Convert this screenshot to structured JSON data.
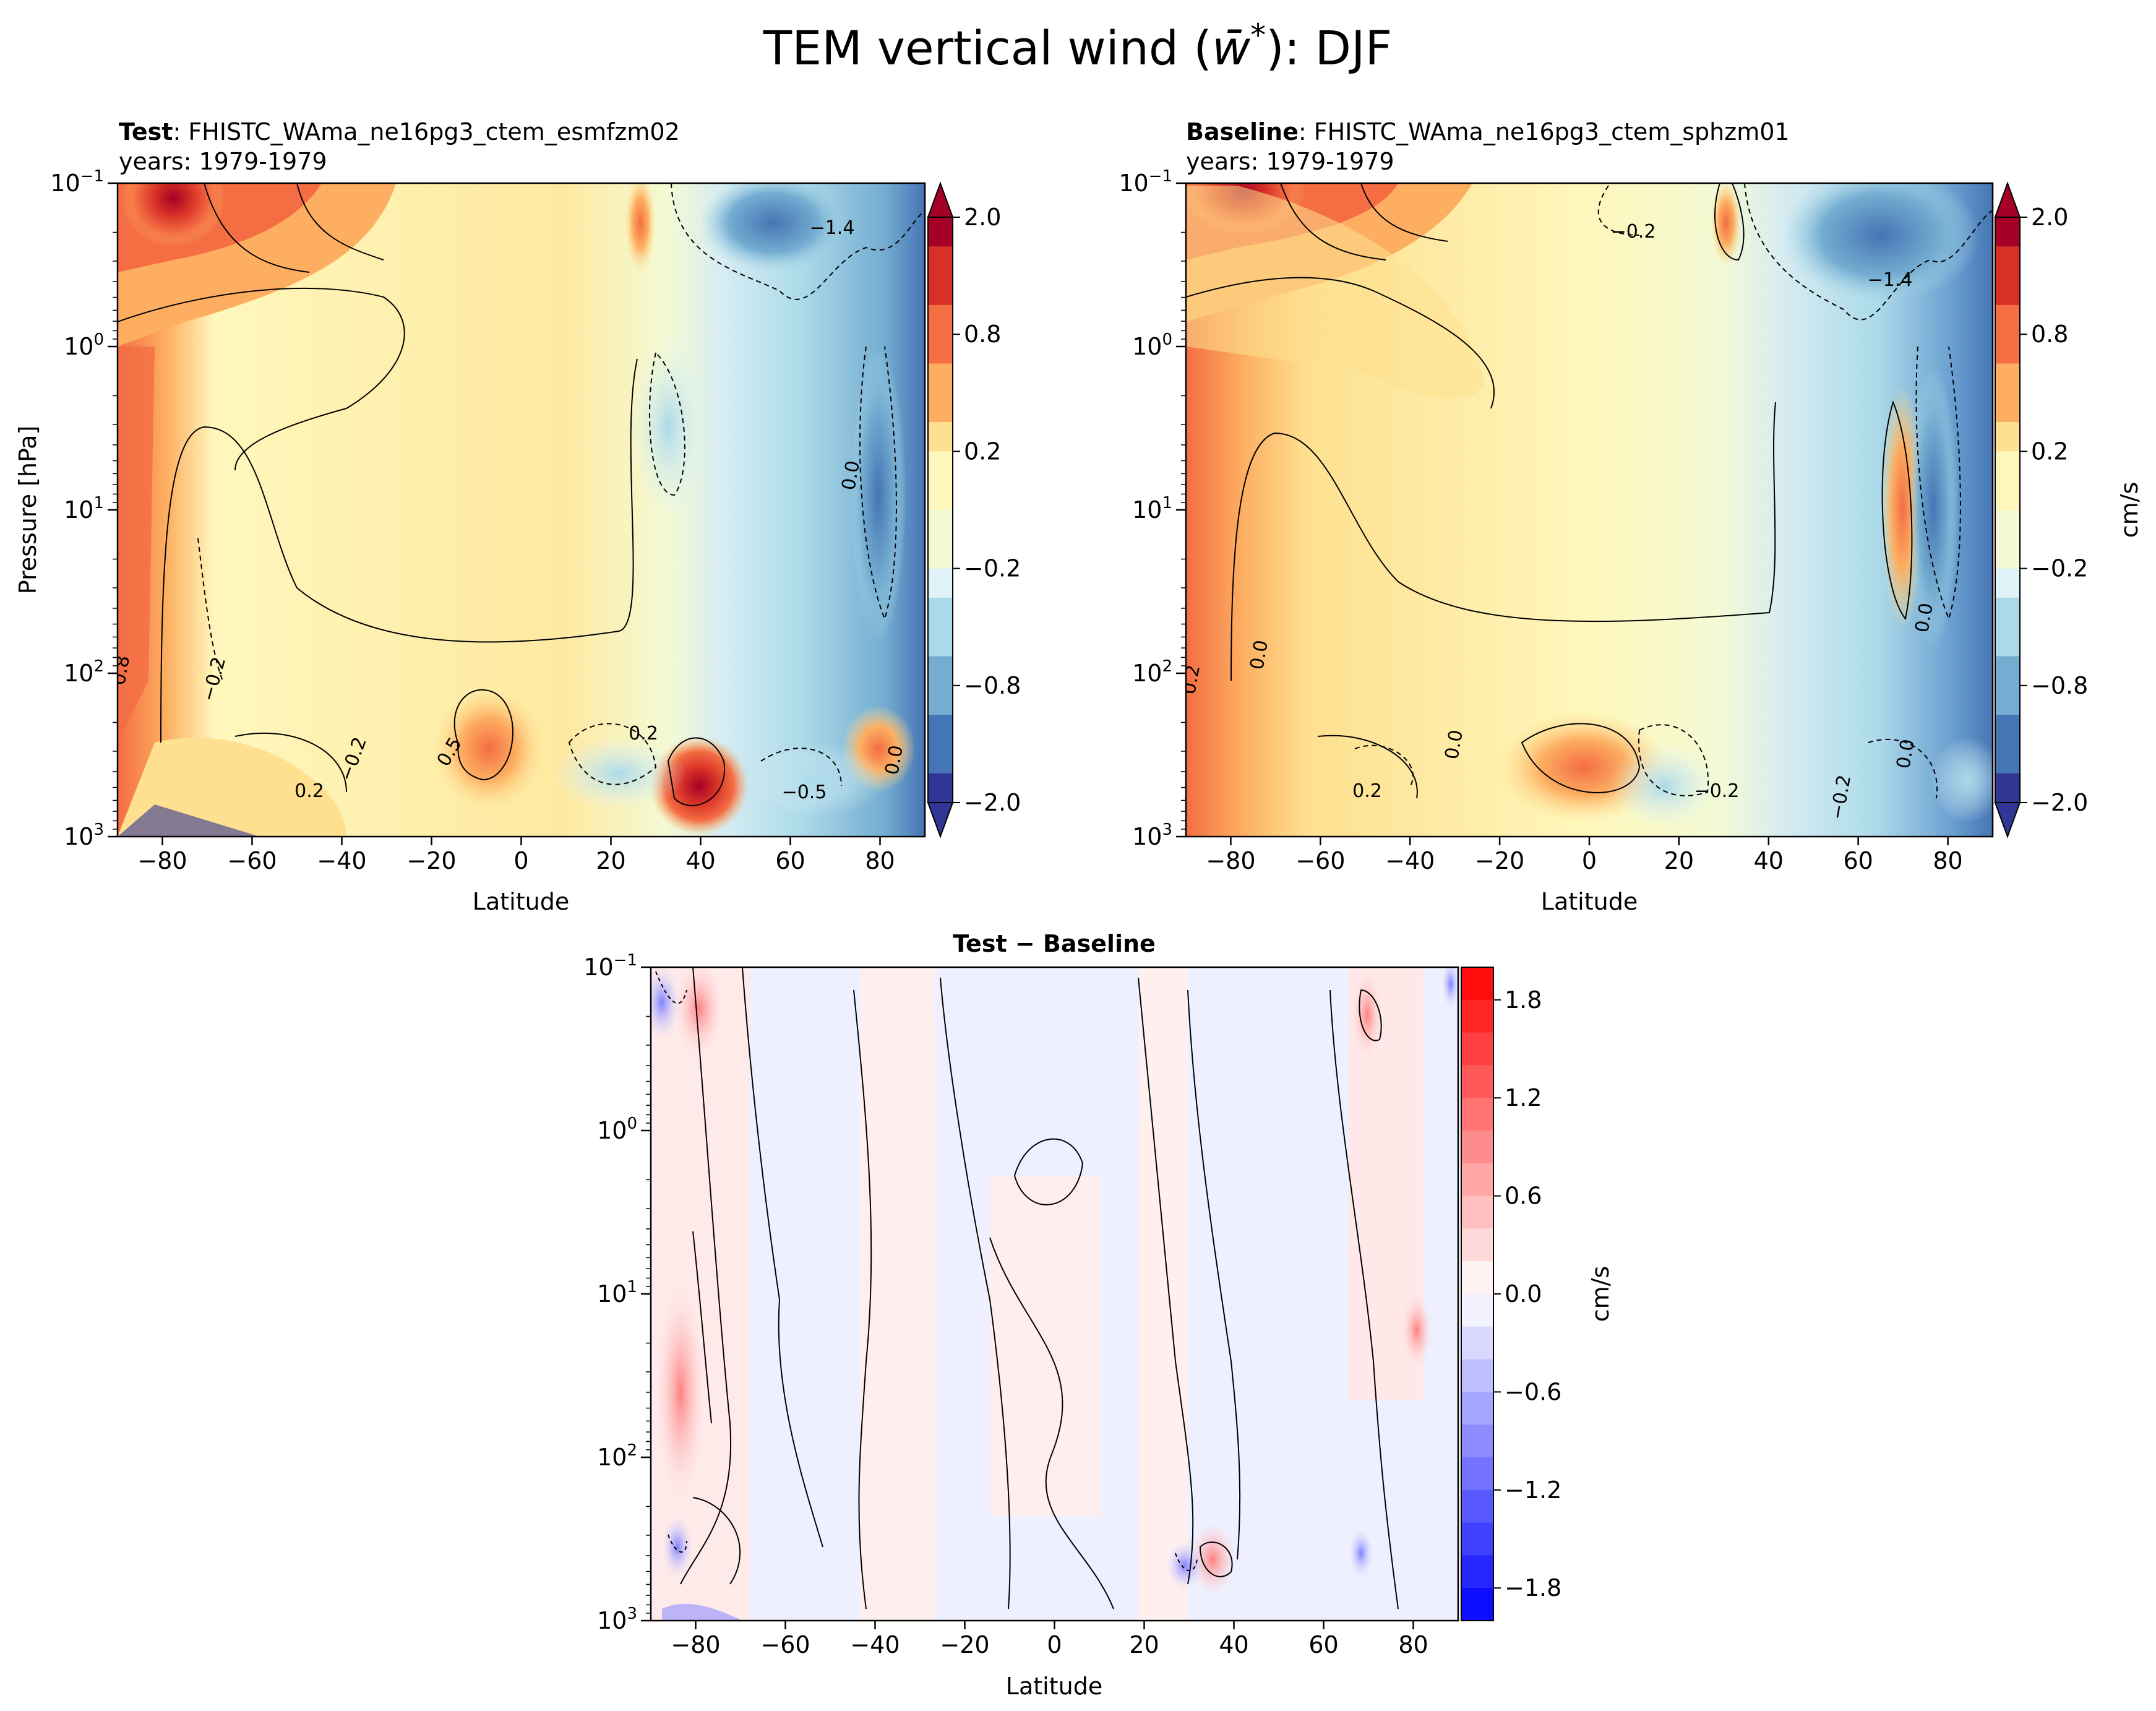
{
  "figure": {
    "suptitle": "TEM vertical wind (w̄*): DJF",
    "suptitle_main": "TEM vertical wind (",
    "suptitle_w": "w̄",
    "suptitle_star": "*",
    "suptitle_tail": "): DJF"
  },
  "chart_data": [
    {
      "id": "test",
      "type": "contour",
      "title_bold": "Test",
      "title_rest": ": FHISTC_WAma_ne16pg3_ctem_esmfzm02",
      "subtitle": "years: 1979-1979",
      "xlabel": "Latitude",
      "ylabel": "Pressure [hPa]",
      "xlim": [
        -90,
        90
      ],
      "ylim_hPa": [
        1000,
        0.1
      ],
      "yscale": "log",
      "xticks": [
        -80,
        -60,
        -40,
        -20,
        0,
        20,
        40,
        60,
        80
      ],
      "yticks": [
        {
          "base": "10",
          "exp": "−1"
        },
        {
          "base": "10",
          "exp": "0"
        },
        {
          "base": "10",
          "exp": "1"
        },
        {
          "base": "10",
          "exp": "2"
        },
        {
          "base": "10",
          "exp": "3"
        }
      ],
      "colorbar": {
        "ticks": [
          "2.0",
          "0.8",
          "0.2",
          "−0.2",
          "−0.8",
          "−2.0"
        ],
        "label": "",
        "cmap": "RdYlBu_r",
        "extend": "both"
      },
      "contour_labels": [
        "−1.4",
        "0.0",
        "−0.2",
        "0.2",
        "0.5",
        "−0.5",
        "0.8",
        "0.2",
        "−0.2",
        "0.0"
      ]
    },
    {
      "id": "baseline",
      "type": "contour",
      "title_bold": "Baseline",
      "title_rest": ": FHISTC_WAma_ne16pg3_ctem_sphzm01",
      "subtitle": "years: 1979-1979",
      "xlabel": "Latitude",
      "xlim": [
        -90,
        90
      ],
      "ylim_hPa": [
        1000,
        0.1
      ],
      "yscale": "log",
      "xticks": [
        -80,
        -60,
        -40,
        -20,
        0,
        20,
        40,
        60,
        80
      ],
      "yticks": [
        {
          "base": "10",
          "exp": "−1"
        },
        {
          "base": "10",
          "exp": "0"
        },
        {
          "base": "10",
          "exp": "1"
        },
        {
          "base": "10",
          "exp": "2"
        },
        {
          "base": "10",
          "exp": "3"
        }
      ],
      "colorbar": {
        "ticks": [
          "2.0",
          "0.8",
          "0.2",
          "−0.2",
          "−0.8",
          "−2.0"
        ],
        "label": "cm/s",
        "cmap": "RdYlBu_r",
        "extend": "both"
      },
      "contour_labels": [
        "−0.2",
        "−1.4",
        "0.0",
        "0.2",
        "−0.2",
        "0.0",
        "0.2",
        "0.0",
        "−0.2",
        "0.0"
      ]
    },
    {
      "id": "diff",
      "type": "contour",
      "title_bold": "Test − Baseline",
      "xlabel": "Latitude",
      "xlim": [
        -90,
        90
      ],
      "ylim_hPa": [
        1000,
        0.1
      ],
      "yscale": "log",
      "xticks": [
        -80,
        -60,
        -40,
        -20,
        0,
        20,
        40,
        60,
        80
      ],
      "yticks": [
        {
          "base": "10",
          "exp": "−1"
        },
        {
          "base": "10",
          "exp": "0"
        },
        {
          "base": "10",
          "exp": "1"
        },
        {
          "base": "10",
          "exp": "2"
        },
        {
          "base": "10",
          "exp": "3"
        }
      ],
      "colorbar": {
        "ticks": [
          "1.8",
          "1.2",
          "0.6",
          "0.0",
          "−0.6",
          "−1.2",
          "−1.8"
        ],
        "label": "cm/s",
        "cmap": "bwr",
        "extend": "neither"
      }
    }
  ],
  "colors": {
    "rdylbu": [
      "#313695",
      "#4575b4",
      "#74add1",
      "#abd9e9",
      "#e0f3f8",
      "#f4fad4",
      "#fff7bc",
      "#fee090",
      "#fdae61",
      "#f46d43",
      "#d73027",
      "#a50026"
    ],
    "bwr": [
      "#0000ff",
      "#ffffff",
      "#ff0000"
    ]
  }
}
